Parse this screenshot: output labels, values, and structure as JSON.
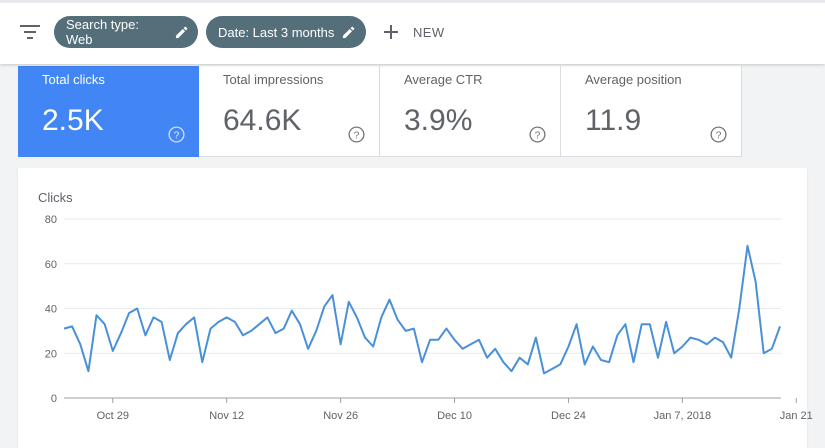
{
  "toolbar": {
    "filter_icon": "filter-list-icon",
    "chips": [
      {
        "label": "Search type: Web",
        "icon": "pencil-icon"
      },
      {
        "label": "Date: Last 3 months",
        "icon": "pencil-icon"
      }
    ],
    "new_label": "NEW",
    "new_icon": "plus-icon"
  },
  "metrics": [
    {
      "label": "Total clicks",
      "value": "2.5K",
      "active": true
    },
    {
      "label": "Total impressions",
      "value": "64.6K",
      "active": false
    },
    {
      "label": "Average CTR",
      "value": "3.9%",
      "active": false
    },
    {
      "label": "Average position",
      "value": "11.9",
      "active": false
    }
  ],
  "colors": {
    "accent": "#4285f4",
    "chip": "#546e7a",
    "line": "#4a90d9",
    "text_secondary": "#5f6368"
  },
  "chart_data": {
    "type": "line",
    "ylabel": "Clicks",
    "ylim": [
      0,
      80
    ],
    "yticks": [
      0,
      20,
      40,
      60,
      80
    ],
    "grid": true,
    "xtick_labels": [
      "Oct 29",
      "Nov 12",
      "Nov 26",
      "Dec 10",
      "Dec 24",
      "Jan 7, 2018",
      "Jan 21"
    ],
    "xtick_index": [
      6,
      20,
      34,
      48,
      62,
      76,
      90
    ],
    "series": [
      {
        "values": [
          31,
          32,
          24,
          12,
          37,
          33,
          21,
          29,
          38,
          40,
          28,
          36,
          34,
          17,
          29,
          33,
          36,
          16,
          31,
          34,
          36,
          34,
          28,
          30,
          33,
          36,
          29,
          31,
          39,
          33,
          22,
          30,
          41,
          46,
          24,
          43,
          36,
          27,
          23,
          36,
          44,
          35,
          30,
          31,
          16,
          26,
          26,
          31,
          26,
          22,
          24,
          26,
          18,
          22,
          16,
          12,
          18,
          15,
          27,
          11,
          13,
          15,
          23,
          33,
          15,
          23,
          17,
          16,
          28,
          33,
          16,
          33,
          33,
          18,
          34,
          20,
          23,
          27,
          26,
          24,
          27,
          25,
          18,
          40,
          68,
          52,
          20,
          22,
          32
        ]
      }
    ]
  }
}
